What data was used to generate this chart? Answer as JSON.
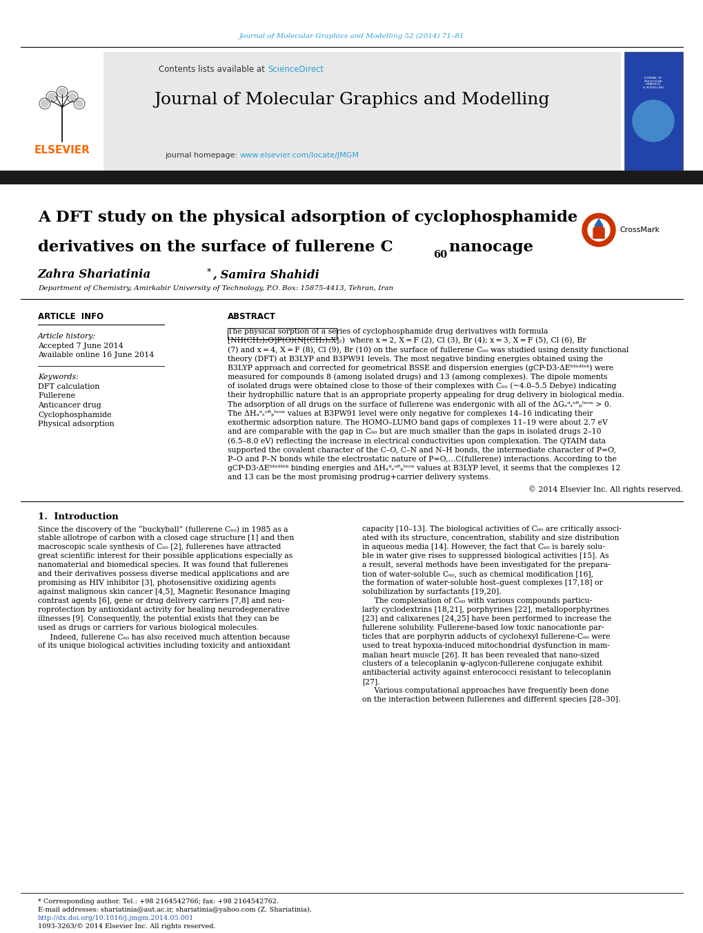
{
  "page_width": 10.2,
  "page_height": 13.51,
  "bg_color": "#ffffff",
  "journal_ref_text": "Journal of Molecular Graphics and Modelling 52 (2014) 71–81",
  "journal_ref_color": "#2a9fd6",
  "header_bg": "#e8e8e8",
  "header_journal_title": "Journal of Molecular Graphics and Modelling",
  "contents_text": "Contents lists available at ",
  "sciencedirect_text": "ScienceDirect",
  "sciencedirect_color": "#2a9fd6",
  "journal_homepage_text": "journal homepage: ",
  "journal_url": "www.elsevier.com/locate/JMGM",
  "journal_url_color": "#2a9fd6",
  "elsevier_color": "#ff6600",
  "article_title_line1": "A DFT study on the physical adsorption of cyclophosphamide",
  "article_title_line2": "derivatives on the surface of fullerene C",
  "article_title_sub": "60",
  "article_title_line2_end": " nanocage",
  "affiliation": "Department of Chemistry, Amirkabir University of Technology, P.O. Box: 15875-4413, Tehran, Iran",
  "article_info_title": "ARTICLE  INFO",
  "abstract_title": "ABSTRACT",
  "article_history_label": "Article history:",
  "accepted_text": "Accepted 7 June 2014",
  "available_text": "Available online 16 June 2014",
  "keywords_label": "Keywords:",
  "keywords": [
    "DFT calculation",
    "Fullerene",
    "Anticancer drug",
    "Cyclophosphamide",
    "Physical adsorption"
  ],
  "copyright_text": "© 2014 Elsevier Inc. All rights reserved.",
  "intro_title": "1.  Introduction",
  "footer_text1": "* Corresponding author. Tel.: +98 2164542766; fax: +98 2164542762.",
  "footer_text2": "E-mail addresses: shariatinia@aut.ac.ir, shariatinia@yahoo.com (Z. Shariatinia).",
  "footer_doi": "http://dx.doi.org/10.1016/j.jmgm.2014.05.001",
  "footer_issn": "1093-3263/© 2014 Elsevier Inc. All rights reserved."
}
